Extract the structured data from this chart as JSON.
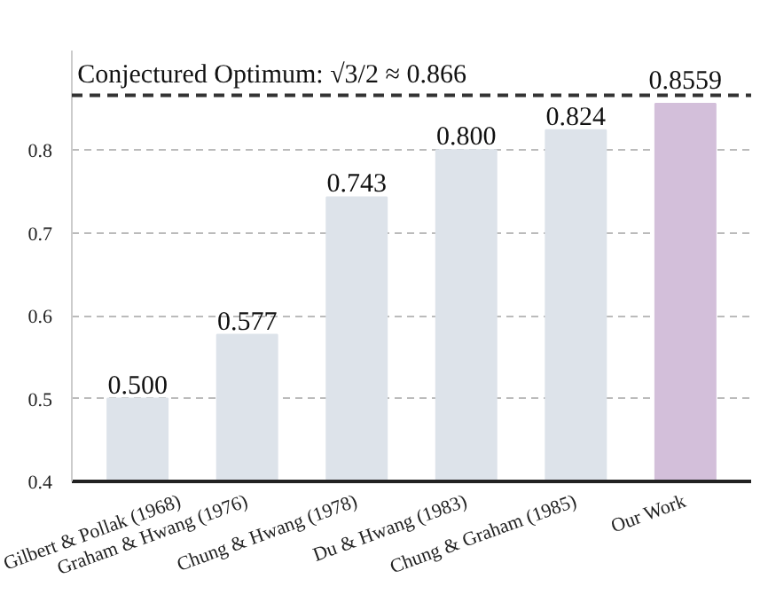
{
  "chart_data": {
    "type": "bar",
    "categories": [
      "Gilbert & Pollak (1968)",
      "Graham & Hwang (1976)",
      "Chung & Hwang (1978)",
      "Du & Hwang (1983)",
      "Chung & Graham (1985)",
      "Our Work"
    ],
    "values": [
      0.5,
      0.577,
      0.743,
      0.8,
      0.824,
      0.8559
    ],
    "value_labels": [
      "0.500",
      "0.577",
      "0.743",
      "0.800",
      "0.824",
      "0.8559"
    ],
    "colors": [
      "#dde3ea",
      "#dde3ea",
      "#dde3ea",
      "#dde3ea",
      "#dde3ea",
      "#d3bfda"
    ],
    "ylim": [
      0.4,
      0.92
    ],
    "yticks": [
      0.4,
      0.5,
      0.6,
      0.7,
      0.8
    ],
    "grid": "y",
    "ref_lines": [
      {
        "axis": "y",
        "value": 0.866,
        "label": "Conjectured Optimum: √3/2 ≈ 0.866",
        "color": "#333333",
        "line_style": "dashed"
      }
    ]
  }
}
